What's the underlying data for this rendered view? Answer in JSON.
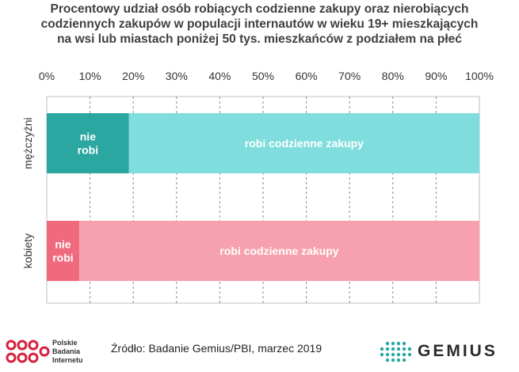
{
  "chart_data": {
    "type": "bar",
    "orientation": "horizontal",
    "stacked": true,
    "title_lines": [
      "Procentowy udział osób robiących codzienne zakupy oraz nierobiących",
      "codziennych zakupów w populacji internautów w wieku 19+ mieszkających",
      "na wsi lub miastach poniżej 50 tys.  mieszkańców z podziałem na płeć"
    ],
    "x_ticks": [
      "0%",
      "10%",
      "20%",
      "30%",
      "40%",
      "50%",
      "60%",
      "70%",
      "80%",
      "90%",
      "100%"
    ],
    "xlim": [
      0,
      100
    ],
    "xaxis_position": "top",
    "grid": "vertical dashed",
    "categories": [
      "mężczyźni",
      "kobiety"
    ],
    "bars": [
      {
        "category": "mężczyźni",
        "segments": [
          {
            "label": [
              "nie",
              "robi"
            ],
            "value": 19,
            "color": "#2aa7a0"
          },
          {
            "label": [
              "robi codzienne zakupy"
            ],
            "value": 81,
            "color": "#7fdedd"
          }
        ]
      },
      {
        "category": "kobiety",
        "segments": [
          {
            "label": [
              "nie",
              "robi"
            ],
            "value": 7.5,
            "color": "#f06a7d"
          },
          {
            "label": [
              "robi codzienne zakupy"
            ],
            "value": 92.5,
            "color": "#f7a1ae"
          }
        ]
      }
    ]
  },
  "footer": {
    "source": "Źródło: Badanie Gemius/PBI, marzec 2019",
    "pbi_lines": [
      "Polskie",
      "Badania",
      "Internetu"
    ],
    "gemius": "GEMIUS",
    "pbi_color": "#d5213c",
    "gemius_color": "#2aa7a0"
  }
}
